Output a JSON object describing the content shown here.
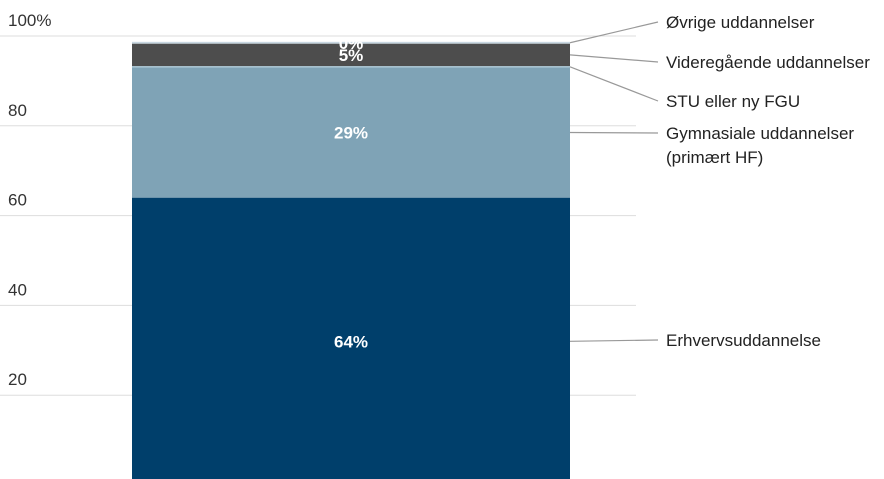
{
  "chart_data": {
    "type": "bar",
    "stacked": true,
    "title": "",
    "xlabel": "",
    "ylabel": "",
    "ylim": [
      0,
      100
    ],
    "yticks": [
      {
        "value": 20,
        "label": "20"
      },
      {
        "value": 40,
        "label": "40"
      },
      {
        "value": 60,
        "label": "60"
      },
      {
        "value": 80,
        "label": "80"
      },
      {
        "value": 100,
        "label": "100%"
      }
    ],
    "grid": true,
    "legend_placement": "right",
    "categories": [
      ""
    ],
    "series": [
      {
        "name": "Erhvervsuddannelse",
        "values": [
          64
        ],
        "label": "64%",
        "color": "#003f6b"
      },
      {
        "name": "Gymnasiale uddannelser (primært HF)",
        "lines": [
          "Gymnasiale uddannelser",
          "(primært HF)"
        ],
        "values": [
          29
        ],
        "label": "29%",
        "color": "#7fa3b6"
      },
      {
        "name": "STU eller ny FGU",
        "values": [
          0.3
        ],
        "label": "",
        "color": "#aac6d4"
      },
      {
        "name": "Videregående uddannelser",
        "values": [
          5
        ],
        "label": "5%",
        "color": "#4d4d4d"
      },
      {
        "name": "Øvrige uddannelser",
        "values": [
          0.4
        ],
        "label": "0%",
        "color": "#c9d8e2"
      }
    ]
  }
}
